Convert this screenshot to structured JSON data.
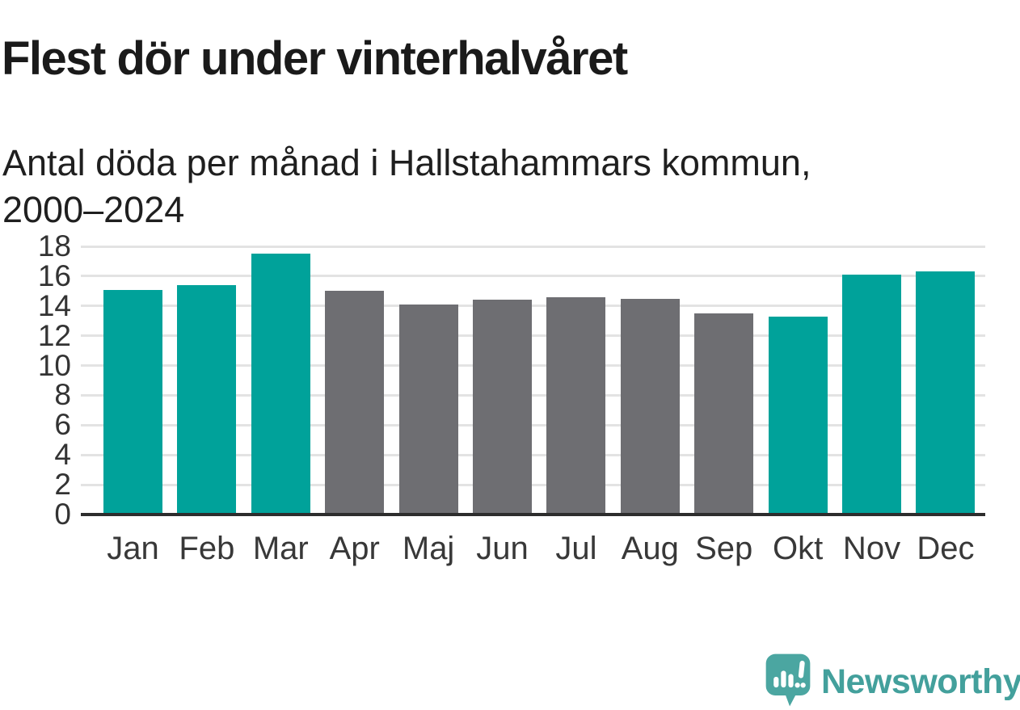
{
  "header": {
    "title": "Flest dör under vinterhalvåret",
    "subtitle": "Antal döda per månad i Hallstahammars kommun,\n2000–2024"
  },
  "footer": {
    "brand_name": "Newsworthy",
    "brand_icon": "speech-bubble-bar-chart-icon"
  },
  "colors": {
    "highlight_teal": "#00a29a",
    "neutral_gray": "#6e6e72",
    "gridline": "#e3e3e3",
    "axis_baseline": "#2d2d2d",
    "title_text": "#1a1a1a",
    "tick_text": "#333333",
    "brand_teal": "#43a09c",
    "background": "#ffffff"
  },
  "chart_data": {
    "type": "bar",
    "title": "Flest dör under vinterhalvåret",
    "subtitle": "Antal döda per månad i Hallstahammars kommun, 2000–2024",
    "categories": [
      "Jan",
      "Feb",
      "Mar",
      "Apr",
      "Maj",
      "Jun",
      "Jul",
      "Aug",
      "Sep",
      "Okt",
      "Nov",
      "Dec"
    ],
    "values": [
      15.1,
      15.4,
      17.5,
      15.0,
      14.1,
      14.4,
      14.6,
      14.5,
      13.5,
      13.3,
      16.1,
      16.3
    ],
    "bar_colors": [
      "#00a29a",
      "#00a29a",
      "#00a29a",
      "#6e6e72",
      "#6e6e72",
      "#6e6e72",
      "#6e6e72",
      "#6e6e72",
      "#6e6e72",
      "#00a29a",
      "#00a29a",
      "#00a29a"
    ],
    "highlighted_categories": [
      "Jan",
      "Feb",
      "Mar",
      "Okt",
      "Nov",
      "Dec"
    ],
    "xlabel": "",
    "ylabel": "",
    "ylim": [
      0,
      18
    ],
    "yticks": [
      0,
      2,
      4,
      6,
      8,
      10,
      12,
      14,
      16,
      18
    ],
    "grid": true,
    "legend": "none"
  }
}
